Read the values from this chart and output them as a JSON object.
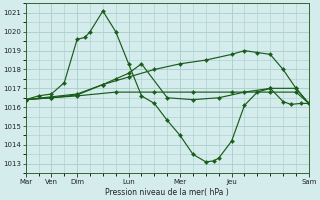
{
  "background_color": "#d4ecec",
  "grid_color": "#a8cccc",
  "line_color": "#1a5c1a",
  "xlabel": "Pression niveau de la mer( hPa )",
  "ylim": [
    1012.5,
    1021.5
  ],
  "yticks": [
    1013,
    1014,
    1015,
    1016,
    1017,
    1018,
    1019,
    1020,
    1021
  ],
  "xlim": [
    0,
    11
  ],
  "x_tick_days": [
    0,
    1,
    2,
    4,
    6,
    8,
    11
  ],
  "x_tick_labels": [
    "Mar",
    "Ven",
    "Dim",
    "Lun",
    "Mer",
    "Jeu",
    "Sam"
  ],
  "series": [
    {
      "x": [
        0,
        0.5,
        1.0,
        1.5,
        2.0,
        2.3,
        2.5,
        3.0,
        3.5,
        4.0,
        4.5,
        5.0,
        5.5,
        6.0,
        6.5,
        7.0,
        7.3,
        7.5,
        8.0,
        8.5,
        9.0,
        9.5,
        10.0,
        10.3,
        10.7,
        11.0
      ],
      "y": [
        1016.4,
        1016.6,
        1016.7,
        1017.3,
        1019.6,
        1019.7,
        1020.0,
        1021.1,
        1020.0,
        1018.3,
        1016.6,
        1016.2,
        1015.3,
        1014.5,
        1013.5,
        1013.1,
        1013.15,
        1013.3,
        1014.2,
        1016.1,
        1016.8,
        1017.0,
        1016.3,
        1016.15,
        1016.2,
        1016.2
      ]
    },
    {
      "x": [
        0,
        1.0,
        2.0,
        3.5,
        5.0,
        6.5,
        8.0,
        9.5,
        10.5,
        11.0
      ],
      "y": [
        1016.4,
        1016.5,
        1016.6,
        1016.8,
        1016.8,
        1016.8,
        1016.8,
        1016.8,
        1016.8,
        1016.2
      ]
    },
    {
      "x": [
        0,
        1.0,
        2.0,
        3.0,
        3.5,
        4.0,
        4.5,
        5.5,
        6.5,
        7.5,
        8.5,
        9.5,
        10.5,
        11.0
      ],
      "y": [
        1016.4,
        1016.5,
        1016.65,
        1017.2,
        1017.5,
        1017.8,
        1018.3,
        1016.5,
        1016.4,
        1016.5,
        1016.8,
        1017.0,
        1017.0,
        1016.2
      ]
    },
    {
      "x": [
        0,
        1.0,
        2.0,
        3.0,
        4.0,
        5.0,
        6.0,
        7.0,
        8.0,
        8.5,
        9.0,
        9.5,
        10.0,
        10.5,
        11.0
      ],
      "y": [
        1016.4,
        1016.55,
        1016.7,
        1017.2,
        1017.6,
        1018.0,
        1018.3,
        1018.5,
        1018.8,
        1019.0,
        1018.9,
        1018.8,
        1018.0,
        1017.0,
        1016.2
      ]
    }
  ]
}
